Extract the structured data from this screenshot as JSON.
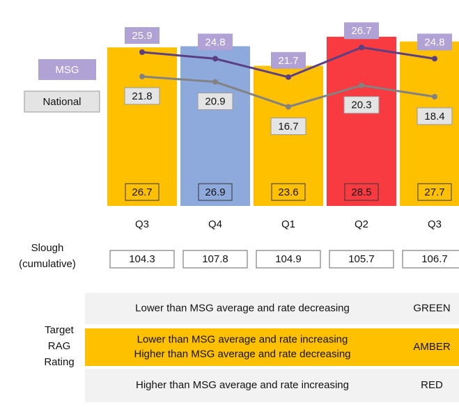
{
  "chart_data": {
    "type": "bar",
    "categories": [
      "Q3",
      "Q4",
      "Q1",
      "Q2",
      "Q3"
    ],
    "values": [
      26.7,
      26.9,
      23.6,
      28.5,
      27.7
    ],
    "colors": [
      "#ffc000",
      "#8eaadc",
      "#ffc000",
      "#f83b40",
      "#ffc000"
    ],
    "ylim": [
      0,
      30
    ],
    "series": [
      {
        "name": "MSG",
        "color": "#5a3f82",
        "label_color": "#b0a2d4",
        "values": [
          25.9,
          24.8,
          21.7,
          26.7,
          24.8
        ]
      },
      {
        "name": "National",
        "color": "#828282",
        "label_color": "#e4e4e4",
        "values": [
          21.8,
          20.9,
          16.7,
          20.3,
          18.4
        ]
      }
    ]
  },
  "slough": {
    "label": [
      "Slough",
      "(cumulative)"
    ],
    "values": [
      "104.3",
      "107.8",
      "104.9",
      "105.7",
      "106.7"
    ]
  },
  "rag": {
    "label": [
      "Target",
      "RAG",
      "Rating"
    ],
    "rows": [
      {
        "criteria": [
          "Lower than MSG average and rate decreasing"
        ],
        "rating": "GREEN",
        "color": "#f2f2f2"
      },
      {
        "criteria": [
          "Lower than MSG average and rate increasing",
          "Higher than MSG average and rate decreasing"
        ],
        "rating": "AMBER",
        "color": "#ffc000"
      },
      {
        "criteria": [
          "Higher than MSG average and rate increasing"
        ],
        "rating": "RED",
        "color": "#f2f2f2"
      }
    ]
  }
}
